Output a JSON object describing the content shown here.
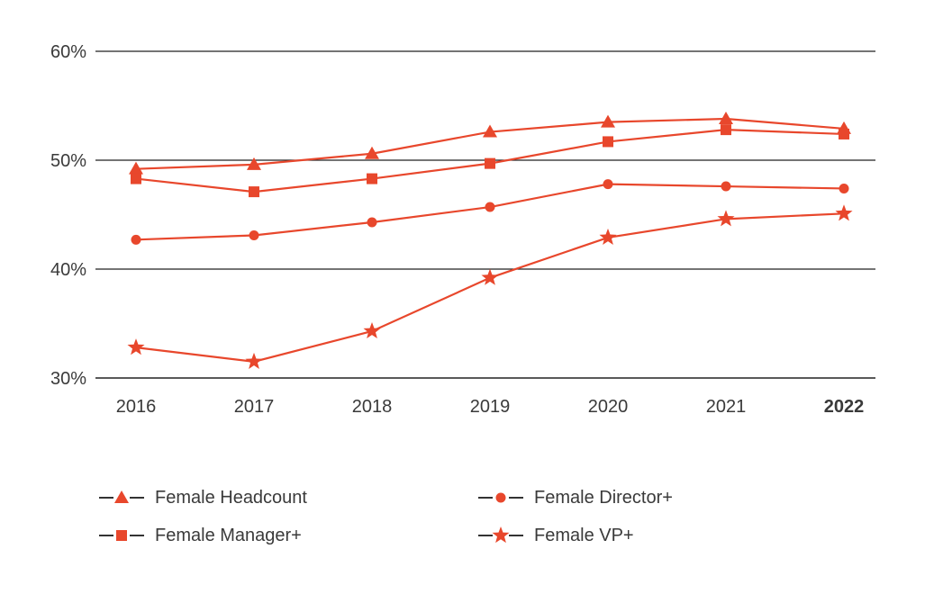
{
  "chart_data": {
    "type": "line",
    "categories": [
      "2016",
      "2017",
      "2018",
      "2019",
      "2020",
      "2021",
      "2022"
    ],
    "highlight_category": "2022",
    "ylim": [
      30,
      60
    ],
    "yticks": [
      30,
      40,
      50,
      60
    ],
    "ytick_labels": [
      "30%",
      "40%",
      "50%",
      "60%"
    ],
    "grid": "horizontal",
    "legend_placement": "bottom",
    "color": "#e8472c",
    "axis_color": "#222222",
    "series": [
      {
        "name": "Female Headcount",
        "marker": "triangle",
        "values": [
          49.2,
          49.6,
          50.6,
          52.6,
          53.5,
          53.8,
          52.9
        ]
      },
      {
        "name": "Female Manager+",
        "marker": "square",
        "values": [
          48.3,
          47.1,
          48.3,
          49.7,
          51.7,
          52.8,
          52.4
        ]
      },
      {
        "name": "Female Director+",
        "marker": "circle",
        "values": [
          42.7,
          43.1,
          44.3,
          45.7,
          47.8,
          47.6,
          47.4
        ]
      },
      {
        "name": "Female VP+",
        "marker": "star",
        "values": [
          32.8,
          31.5,
          34.3,
          39.2,
          42.9,
          44.6,
          45.1
        ]
      }
    ],
    "legend_order": [
      "Female Headcount",
      "Female Director+",
      "Female Manager+",
      "Female VP+"
    ]
  }
}
